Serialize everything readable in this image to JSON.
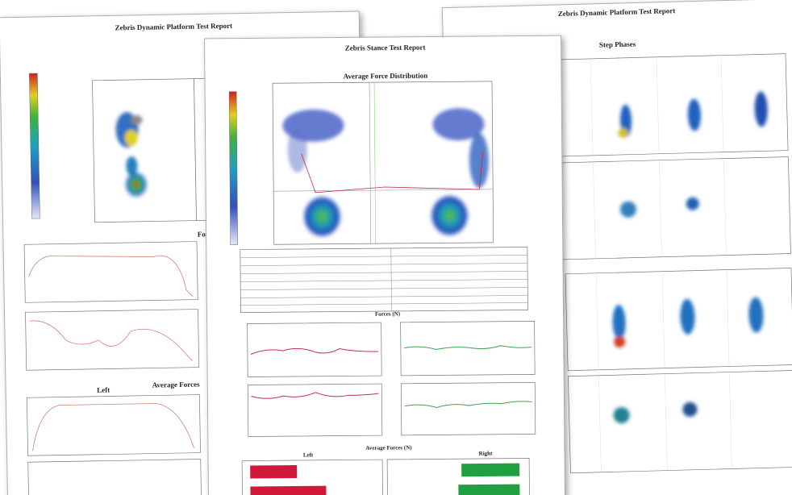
{
  "back_left_page": {
    "title": "Zebris Dynamic Platform Test Report",
    "sections": [
      "Forces (N)",
      "Average Forces"
    ],
    "side_label": "Left"
  },
  "back_right_page": {
    "title": "Zebris Dynamic Platform Test Report",
    "section": "Step Phases"
  },
  "front_page": {
    "title": "Zebris Stance Test Report",
    "sections": [
      "Average Force Distribution",
      "Forces (N)",
      "Average Forces (N)"
    ],
    "side_labels": [
      "Left",
      "Right"
    ]
  }
}
